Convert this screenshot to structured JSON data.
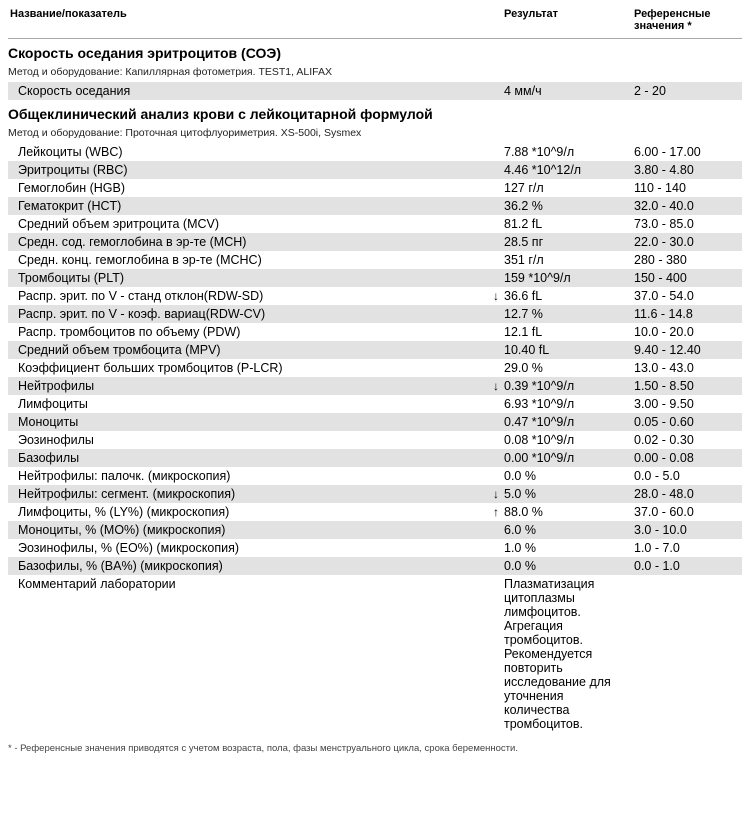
{
  "headers": {
    "name": "Название/показатель",
    "result": "Результат",
    "reference": "Референсные значения *"
  },
  "footnote": "* - Референсные значения приводятся с учетом возраста, пола, фазы менструального цикла, срока беременности.",
  "colors": {
    "alt_row_bg": "#e2e2e2",
    "header_border": "#aaaaaa",
    "text": "#000000",
    "bg": "#ffffff"
  },
  "sections": [
    {
      "title": "Скорость оседания эритроцитов (СОЭ)",
      "method_label": "Метод и оборудование:  Капиллярная фотометрия. TEST1, ALIFAX",
      "rows": [
        {
          "name": "Скорость оседания",
          "flag": "",
          "result": "4 мм/ч",
          "ref": "2 - 20",
          "alt": true
        }
      ]
    },
    {
      "title": "Общеклинический анализ крови с лейкоцитарной формулой",
      "method_label": "Метод и оборудование:  Проточная цитофлуориметрия. XS-500i, Sysmex",
      "rows": [
        {
          "name": "Лейкоциты (WBC)",
          "flag": "",
          "result": "7.88 *10^9/л",
          "ref": "6.00 - 17.00",
          "alt": false
        },
        {
          "name": "Эритроциты (RBC)",
          "flag": "",
          "result": "4.46 *10^12/л",
          "ref": "3.80 - 4.80",
          "alt": true
        },
        {
          "name": "Гемоглобин (HGB)",
          "flag": "",
          "result": "127 г/л",
          "ref": "110 - 140",
          "alt": false
        },
        {
          "name": "Гематокрит (HCT)",
          "flag": "",
          "result": "36.2 %",
          "ref": "32.0 - 40.0",
          "alt": true
        },
        {
          "name": "Средний объем эритроцита (MCV)",
          "flag": "",
          "result": "81.2 fL",
          "ref": "73.0 - 85.0",
          "alt": false
        },
        {
          "name": "Средн. сод. гемоглобина в эр-те (MCH)",
          "flag": "",
          "result": "28.5 пг",
          "ref": "22.0 - 30.0",
          "alt": true
        },
        {
          "name": "Средн. конц. гемоглобина в эр-те (MCHC)",
          "flag": "",
          "result": "351 г/л",
          "ref": "280 - 380",
          "alt": false
        },
        {
          "name": "Тромбоциты (PLT)",
          "flag": "",
          "result": "159 *10^9/л",
          "ref": "150 - 400",
          "alt": true
        },
        {
          "name": "Распр. эрит. по V - станд отклон(RDW-SD)",
          "flag": "↓",
          "result": "36.6 fL",
          "ref": "37.0 - 54.0",
          "alt": false
        },
        {
          "name": "Распр. эрит. по V - коэф. вариац(RDW-CV)",
          "flag": "",
          "result": "12.7 %",
          "ref": "11.6 - 14.8",
          "alt": true
        },
        {
          "name": "Распр. тромбоцитов по объему (PDW)",
          "flag": "",
          "result": "12.1 fL",
          "ref": "10.0 - 20.0",
          "alt": false
        },
        {
          "name": "Средний объем тромбоцита (MPV)",
          "flag": "",
          "result": "10.40 fL",
          "ref": "9.40 - 12.40",
          "alt": true
        },
        {
          "name": "Коэффициент больших тромбоцитов (P-LCR)",
          "flag": "",
          "result": "29.0 %",
          "ref": "13.0 - 43.0",
          "alt": false
        },
        {
          "name": "Нейтрофилы",
          "flag": "↓",
          "result": "0.39 *10^9/л",
          "ref": "1.50 - 8.50",
          "alt": true
        },
        {
          "name": "Лимфоциты",
          "flag": "",
          "result": "6.93 *10^9/л",
          "ref": "3.00 - 9.50",
          "alt": false
        },
        {
          "name": "Моноциты",
          "flag": "",
          "result": "0.47 *10^9/л",
          "ref": "0.05 - 0.60",
          "alt": true
        },
        {
          "name": "Эозинофилы",
          "flag": "",
          "result": "0.08 *10^9/л",
          "ref": "0.02 - 0.30",
          "alt": false
        },
        {
          "name": "Базофилы",
          "flag": "",
          "result": "0.00 *10^9/л",
          "ref": "0.00 - 0.08",
          "alt": true
        },
        {
          "name": "Нейтрофилы: палочк. (микроскопия)",
          "flag": "",
          "result": "0.0 %",
          "ref": "0.0 - 5.0",
          "alt": false
        },
        {
          "name": "Нейтрофилы: сегмент. (микроскопия)",
          "flag": "↓",
          "result": "5.0 %",
          "ref": "28.0 - 48.0",
          "alt": true
        },
        {
          "name": "Лимфоциты, % (LY%) (микроскопия)",
          "flag": "↑",
          "result": "88.0 %",
          "ref": "37.0 - 60.0",
          "alt": false
        },
        {
          "name": "Моноциты, % (MO%) (микроскопия)",
          "flag": "",
          "result": "6.0 %",
          "ref": "3.0 - 10.0",
          "alt": true
        },
        {
          "name": "Эозинофилы, % (EO%) (микроскопия)",
          "flag": "",
          "result": "1.0 %",
          "ref": "1.0 - 7.0",
          "alt": false
        },
        {
          "name": "Базофилы, % (BA%) (микроскопия)",
          "flag": "",
          "result": "0.0 %",
          "ref": "0.0 - 1.0",
          "alt": true
        },
        {
          "name": "Комментарий лаборатории",
          "flag": "",
          "result": "Плазматизация цитоплазмы лимфоцитов. Агрегация тромбоцитов. Рекомендуется повторить исследование для уточнения количества тромбоцитов.",
          "ref": "",
          "alt": false
        }
      ]
    }
  ]
}
